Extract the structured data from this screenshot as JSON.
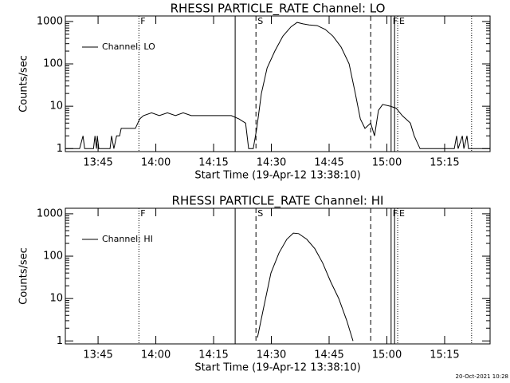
{
  "chart_data": [
    {
      "type": "line",
      "title": "RHESSI PARTICLE_RATE Channel: LO",
      "xlabel": "Start Time (19-Apr-12 13:38:10)",
      "ylabel": "Counts/sec",
      "log_y": true,
      "ylim": [
        0.85,
        1350
      ],
      "yticks": [
        1,
        10,
        100,
        1000
      ],
      "xlim": [
        816.5,
        926.8
      ],
      "xticks": [
        {
          "value": 825,
          "label": "13:45"
        },
        {
          "value": 840,
          "label": "14:00"
        },
        {
          "value": 855,
          "label": "14:15"
        },
        {
          "value": 870,
          "label": "14:30"
        },
        {
          "value": 885,
          "label": "14:45"
        },
        {
          "value": 900,
          "label": "15:00"
        },
        {
          "value": 915,
          "label": "15:15"
        }
      ],
      "markers": [
        {
          "x": 835.6,
          "style": "dotted",
          "label": "F"
        },
        {
          "x": 860.6,
          "style": "solid"
        },
        {
          "x": 866.0,
          "style": "dashed",
          "label": "S"
        },
        {
          "x": 895.8,
          "style": "dashed"
        },
        {
          "x": 901.1,
          "style": "solid",
          "label": "F"
        },
        {
          "x": 902.0,
          "style": "solid"
        },
        {
          "x": 902.8,
          "style": "dotted",
          "label": "E"
        },
        {
          "x": 922.0,
          "style": "dotted"
        }
      ],
      "x": [
        816.5,
        820.2,
        821.1,
        821.5,
        823.8,
        824.2,
        824.6,
        824.8,
        825.2,
        828.1,
        828.5,
        829.1,
        829.8,
        830.6,
        831.0,
        834.7,
        835.8,
        836.8,
        838.9,
        840.9,
        843.0,
        845.1,
        847.1,
        849.2,
        851.3,
        853.3,
        855.4,
        857.5,
        859.6,
        861.6,
        863.3,
        864.1,
        865.3,
        866.2,
        867.4,
        868.9,
        870.9,
        873.0,
        875.1,
        876.7,
        878.2,
        879.8,
        881.9,
        884.0,
        886.0,
        888.1,
        890.2,
        891.8,
        893.1,
        894.3,
        895.8,
        896.8,
        897.8,
        898.9,
        900.9,
        902.4,
        904.0,
        906.1,
        907.1,
        908.6,
        917.5,
        918.1,
        918.5,
        919.6,
        920.0,
        920.8,
        921.2,
        926.8
      ],
      "series": [
        {
          "name": "Channel: LO",
          "color": "#000000",
          "values": [
            1,
            1,
            2,
            1,
            1,
            2,
            1,
            2,
            1,
            1,
            2,
            1,
            2,
            2,
            3,
            3,
            5,
            6,
            7,
            6,
            7,
            6,
            7,
            6,
            6,
            6,
            6,
            6,
            6,
            5,
            4,
            1,
            1,
            3,
            20,
            80,
            200,
            450,
            750,
            950,
            880,
            830,
            800,
            650,
            450,
            250,
            100,
            20,
            5,
            3,
            4,
            2,
            8,
            11,
            10,
            9,
            6,
            4,
            2,
            1,
            1,
            2,
            1,
            2,
            1,
            2,
            1,
            1
          ]
        }
      ]
    },
    {
      "type": "line",
      "title": "RHESSI PARTICLE_RATE Channel: HI",
      "xlabel": "Start Time (19-Apr-12 13:38:10)",
      "ylabel": "Counts/sec",
      "log_y": true,
      "ylim": [
        0.85,
        1350
      ],
      "yticks": [
        1,
        10,
        100,
        1000
      ],
      "xlim": [
        816.5,
        926.8
      ],
      "xticks": [
        {
          "value": 825,
          "label": "13:45"
        },
        {
          "value": 840,
          "label": "14:00"
        },
        {
          "value": 855,
          "label": "14:15"
        },
        {
          "value": 870,
          "label": "14:30"
        },
        {
          "value": 885,
          "label": "14:45"
        },
        {
          "value": 900,
          "label": "15:00"
        },
        {
          "value": 915,
          "label": "15:15"
        }
      ],
      "markers": [
        {
          "x": 835.6,
          "style": "dotted",
          "label": "F"
        },
        {
          "x": 860.6,
          "style": "solid"
        },
        {
          "x": 866.0,
          "style": "dashed",
          "label": "S"
        },
        {
          "x": 895.8,
          "style": "dashed"
        },
        {
          "x": 901.1,
          "style": "solid",
          "label": "F"
        },
        {
          "x": 902.0,
          "style": "solid"
        },
        {
          "x": 902.8,
          "style": "dotted",
          "label": "E"
        },
        {
          "x": 922.0,
          "style": "dotted"
        }
      ],
      "x": [
        866.4,
        867.8,
        869.9,
        872.0,
        874.0,
        875.7,
        877.1,
        879.2,
        881.3,
        883.3,
        885.4,
        887.5,
        889.6,
        890.6,
        891.2
      ],
      "series": [
        {
          "name": "Channel: HI",
          "color": "#000000",
          "values": [
            1.2,
            5,
            40,
            120,
            250,
            350,
            340,
            250,
            150,
            70,
            25,
            10,
            3,
            1.5,
            1
          ]
        }
      ]
    }
  ],
  "footer": "20-Oct-2021 10:28"
}
